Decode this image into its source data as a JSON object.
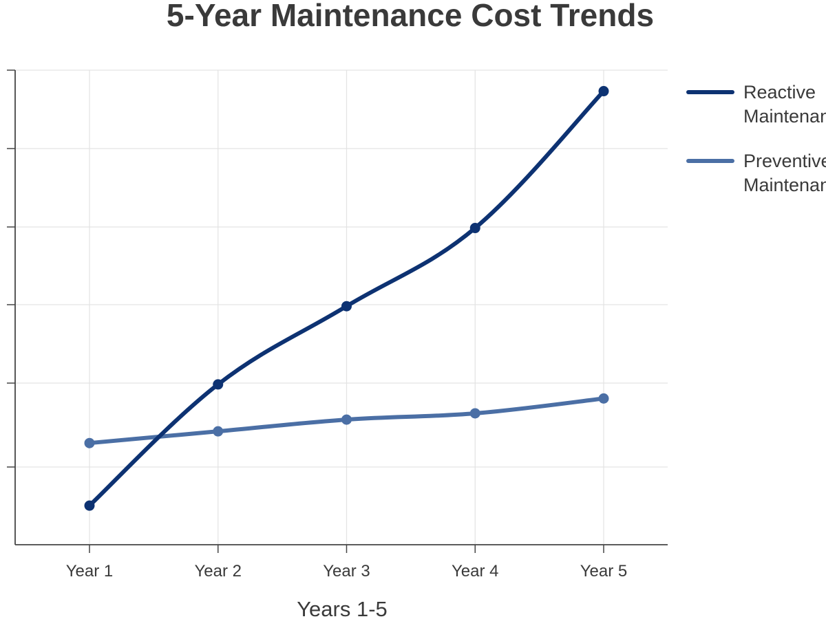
{
  "chart_data": {
    "type": "line",
    "title": "5-Year Maintenance Cost Trends",
    "xlabel": "Years 1-5",
    "ylabel": "",
    "categories": [
      "Year 1",
      "Year 2",
      "Year 3",
      "Year 4",
      "Year 5"
    ],
    "y_ticks": [
      0,
      1,
      2,
      3,
      4,
      5,
      6
    ],
    "y_tick_labels_visible": false,
    "ylim": [
      0,
      6
    ],
    "grid": true,
    "legend_position": "right",
    "series": [
      {
        "name": "Reactive Maintenance",
        "values": [
          0.5,
          2.05,
          3.05,
          4.05,
          5.8
        ],
        "color": "#0d3272"
      },
      {
        "name": "Preventive Maintenance",
        "values": [
          1.3,
          1.45,
          1.6,
          1.68,
          1.87
        ],
        "color": "#4b6fa5"
      }
    ]
  }
}
